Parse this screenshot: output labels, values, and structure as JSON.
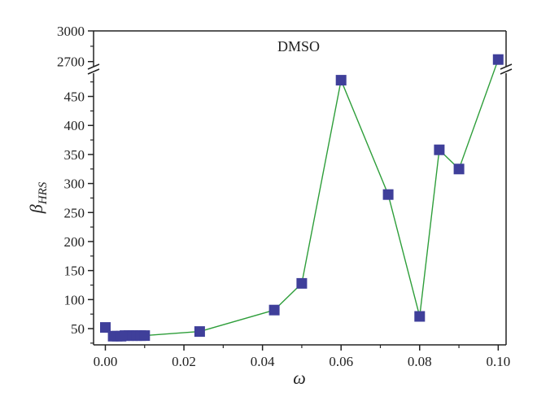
{
  "chart_data": {
    "type": "scatter",
    "title": "",
    "annotation": "DMSO",
    "xlabel": "ω",
    "ylabel_main": "β",
    "ylabel_sub": "HRS",
    "xlim": [
      -0.003,
      0.102
    ],
    "xticks": [
      "0.00",
      "0.02",
      "0.04",
      "0.06",
      "0.08",
      "0.10"
    ],
    "xtick_values": [
      0,
      0.02,
      0.04,
      0.06,
      0.08,
      0.1
    ],
    "y_lower_range": [
      22,
      490
    ],
    "y_upper_range": [
      2650,
      3000
    ],
    "yticks_lower": [
      "50",
      "100",
      "150",
      "200",
      "250",
      "300",
      "350",
      "400",
      "450"
    ],
    "ytick_lower_values": [
      50,
      100,
      150,
      200,
      250,
      300,
      350,
      400,
      450
    ],
    "yticks_upper": [
      "2700",
      "3000"
    ],
    "ytick_upper_values": [
      2700,
      3000
    ],
    "axis_break": true,
    "grid": false,
    "series": [
      {
        "x": [
          0.0,
          0.002,
          0.003,
          0.004,
          0.005,
          0.006,
          0.007,
          0.008,
          0.009,
          0.01,
          0.024,
          0.043,
          0.05,
          0.06,
          0.072,
          0.08,
          0.085,
          0.09,
          0.1
        ],
        "y": [
          52,
          37,
          37,
          37,
          38,
          38,
          38,
          38,
          38,
          38,
          45,
          82,
          128,
          478,
          281,
          71,
          358,
          325,
          2720
        ],
        "color": "#3f3f9a",
        "line_color": "#2e9e3a",
        "marker": "square"
      }
    ]
  }
}
